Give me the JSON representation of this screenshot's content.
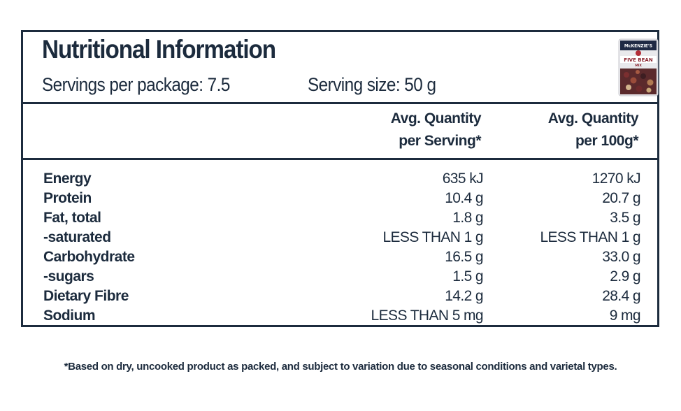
{
  "panel": {
    "title": "Nutritional Information",
    "servings_per_package": "Servings per package: 7.5",
    "serving_size": "Serving size: 50 g",
    "product_image": {
      "brand": "McKENZIE'S",
      "name_line1": "FIVE BEAN",
      "name_line2": "MIX"
    },
    "column_headers": {
      "per_serving_line1": "Avg. Quantity",
      "per_serving_line2": "per Serving*",
      "per_100g_line1": "Avg. Quantity",
      "per_100g_line2": "per 100g*"
    },
    "rows": [
      {
        "nutrient": "Energy",
        "per_serving": "635 kJ",
        "per_100g": "1270 kJ"
      },
      {
        "nutrient": "Protein",
        "per_serving": "10.4 g",
        "per_100g": "20.7 g"
      },
      {
        "nutrient": "Fat, total",
        "per_serving": "1.8 g",
        "per_100g": "3.5 g"
      },
      {
        "nutrient": "-saturated",
        "per_serving": "LESS THAN 1 g",
        "per_100g": "LESS THAN 1 g"
      },
      {
        "nutrient": "Carbohydrate",
        "per_serving": "16.5 g",
        "per_100g": "33.0 g"
      },
      {
        "nutrient": "-sugars",
        "per_serving": "1.5 g",
        "per_100g": "2.9 g"
      },
      {
        "nutrient": "Dietary Fibre",
        "per_serving": "14.2 g",
        "per_100g": "28.4 g"
      },
      {
        "nutrient": "Sodium",
        "per_serving": "LESS THAN 5 mg",
        "per_100g": "9 mg"
      }
    ]
  },
  "footnote": "*Based on dry, uncooked product as packed, and subject to variation due to seasonal conditions and varietal types.",
  "colors": {
    "text": "#1c2b3d",
    "border": "#1c2b3d",
    "package_navy": "#1f2a44",
    "package_red": "#8a2430"
  }
}
